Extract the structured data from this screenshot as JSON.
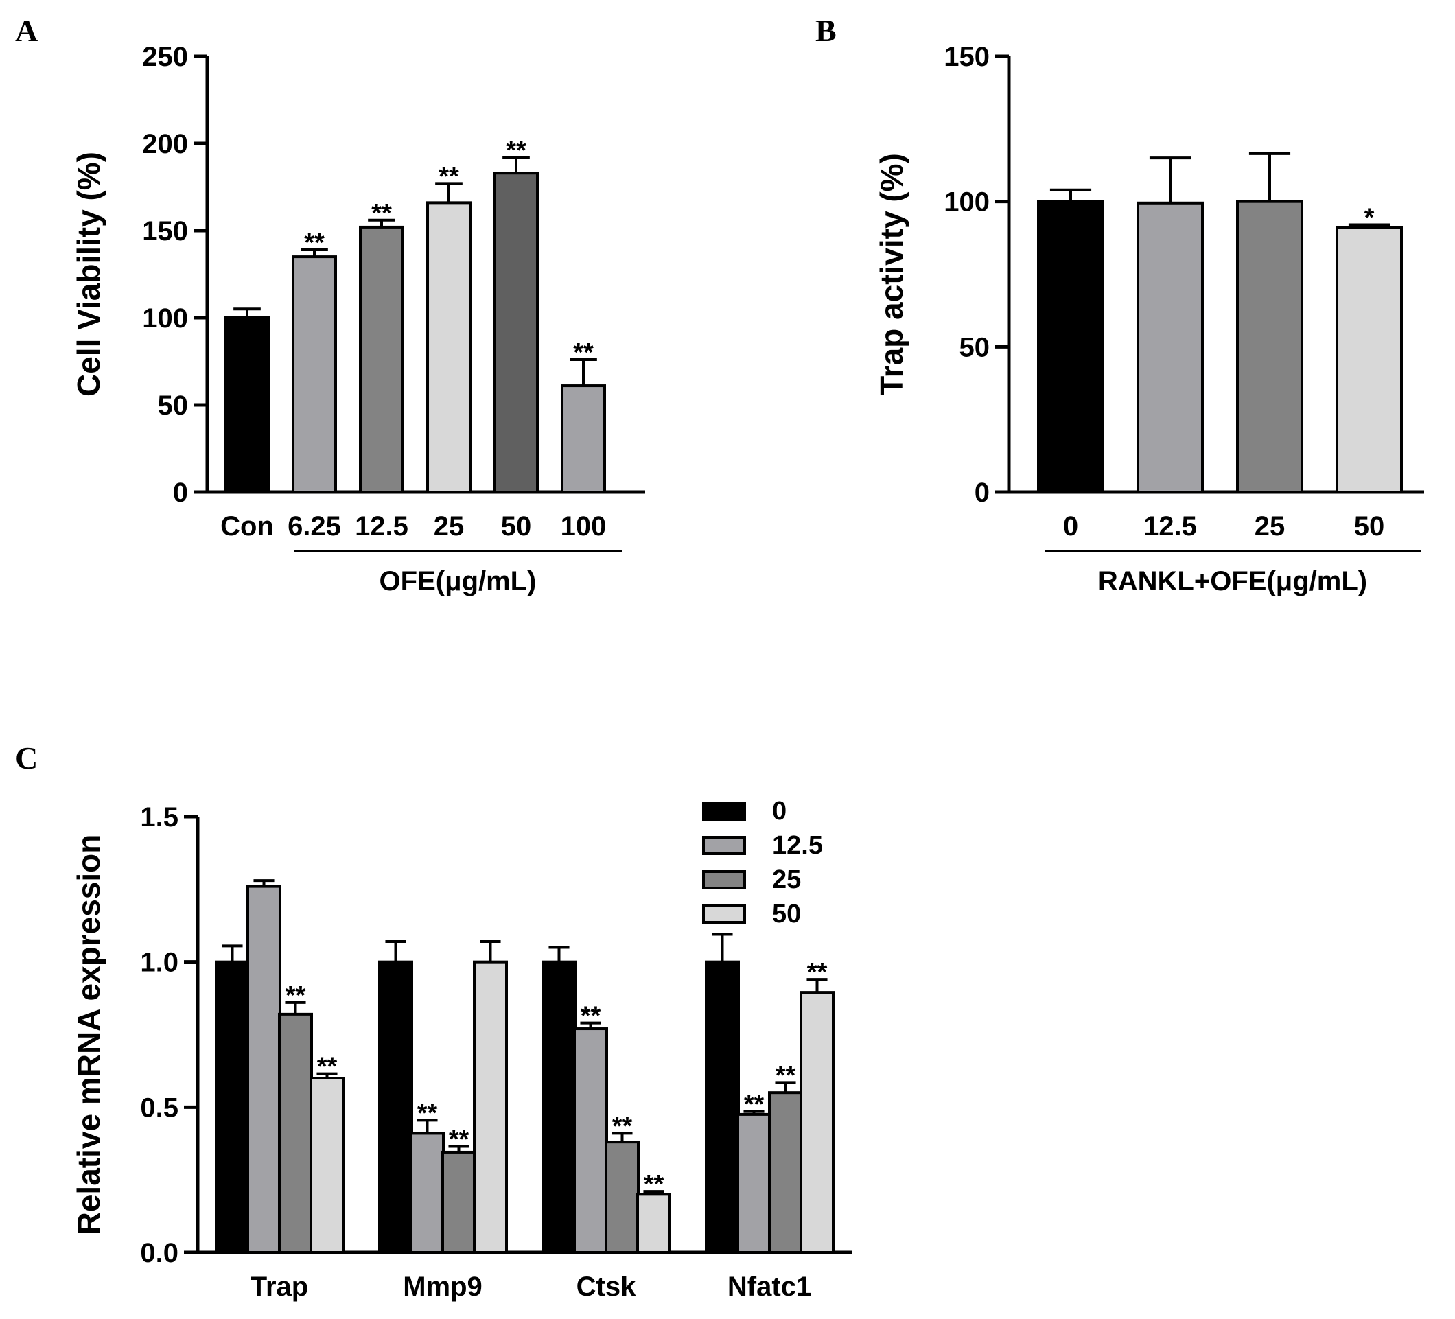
{
  "panels": {
    "A": "A",
    "B": "B",
    "C": "C"
  },
  "colors": {
    "black": "#000000",
    "light_gray": "#a2a2a6",
    "mid_gray": "#838383",
    "pale_gray": "#d8d8d8",
    "dark_gray": "#606060"
  },
  "chart_data": [
    {
      "id": "A",
      "type": "bar",
      "ylabel": "Cell Viability (%)",
      "xlabel": "",
      "group_label": "OFE(μg/mL)",
      "ylim": [
        0,
        250
      ],
      "yticks": [
        "0",
        "50",
        "100",
        "150",
        "200",
        "250"
      ],
      "categories": [
        "Con",
        "6.25",
        "12.5",
        "25",
        "50",
        "100"
      ],
      "values": [
        100,
        135,
        152,
        166,
        183,
        61
      ],
      "errors": [
        5,
        4,
        4,
        11,
        9,
        15
      ],
      "significance": [
        "",
        "**",
        "**",
        "**",
        "**",
        "**"
      ],
      "bar_colors": [
        "#000000",
        "#a2a2a6",
        "#838383",
        "#d8d8d8",
        "#606060",
        "#a2a2a6"
      ]
    },
    {
      "id": "B",
      "type": "bar",
      "ylabel": "Trap activity (%)",
      "xlabel": "",
      "group_label": "RANKL+OFE(μg/mL)",
      "ylim": [
        0,
        150
      ],
      "yticks": [
        "0",
        "50",
        "100",
        "150"
      ],
      "categories": [
        "0",
        "12.5",
        "25",
        "50"
      ],
      "values": [
        100,
        99.5,
        100,
        91
      ],
      "errors": [
        4,
        15.5,
        16.5,
        1
      ],
      "significance": [
        "",
        "",
        "",
        "*"
      ],
      "bar_colors": [
        "#000000",
        "#a2a2a6",
        "#838383",
        "#d8d8d8"
      ]
    },
    {
      "id": "C",
      "type": "bar",
      "ylabel": "Relative mRNA expression",
      "xlabel": "",
      "ylim": [
        0,
        1.5
      ],
      "yticks": [
        "0.0",
        "0.5",
        "1.0",
        "1.5"
      ],
      "categories": [
        "Trap",
        "Mmp9",
        "Ctsk",
        "Nfatc1"
      ],
      "legend_position": "top-right",
      "series": [
        {
          "name": "0",
          "color": "#000000",
          "values": [
            1.0,
            1.0,
            1.0,
            1.0
          ],
          "errors": [
            0.055,
            0.07,
            0.05,
            0.095
          ],
          "significance": [
            "",
            "",
            "",
            ""
          ]
        },
        {
          "name": "12.5",
          "color": "#a2a2a6",
          "values": [
            1.26,
            0.41,
            0.77,
            0.475
          ],
          "errors": [
            0.02,
            0.045,
            0.02,
            0.01
          ],
          "significance": [
            "",
            "**",
            "**",
            "**"
          ]
        },
        {
          "name": "25",
          "color": "#838383",
          "values": [
            0.82,
            0.345,
            0.38,
            0.55
          ],
          "errors": [
            0.04,
            0.02,
            0.03,
            0.035
          ],
          "significance": [
            "**",
            "**",
            "**",
            "**"
          ]
        },
        {
          "name": "50",
          "color": "#d8d8d8",
          "values": [
            0.6,
            1.0,
            0.2,
            0.895
          ],
          "errors": [
            0.015,
            0.07,
            0.01,
            0.045
          ],
          "significance": [
            "**",
            "",
            "**",
            "**"
          ]
        }
      ]
    }
  ]
}
